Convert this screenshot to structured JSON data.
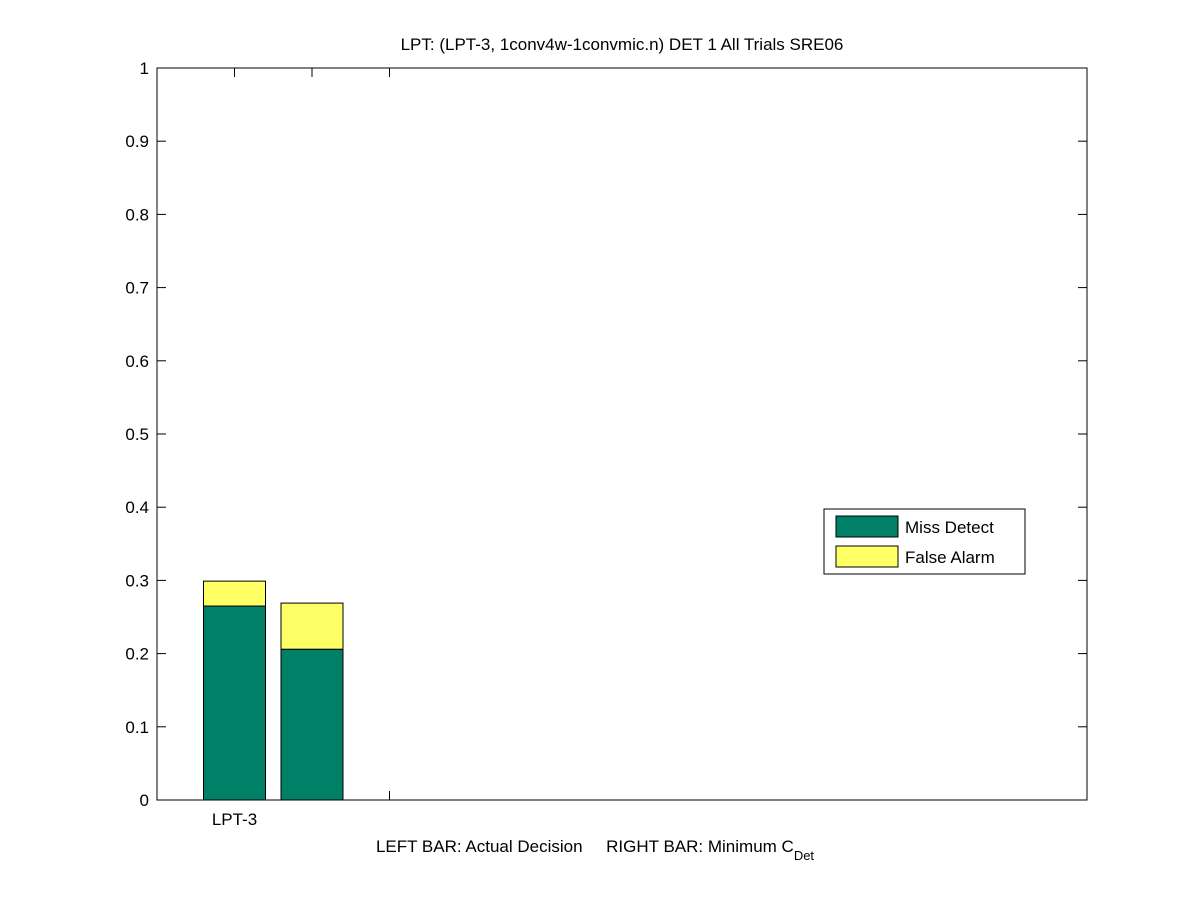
{
  "chart_data": {
    "type": "bar",
    "stacked": true,
    "title": "LPT: (LPT-3, 1conv4w-1convmic.n) DET 1 All Trials SRE06",
    "xlabel": "LEFT BAR: Actual Decision     RIGHT BAR: Minimum C",
    "xlabel_subscript": "Det",
    "ylabel": "",
    "xlim": [
      0,
      12
    ],
    "ylim": [
      0,
      1
    ],
    "yticks": [
      0,
      0.1,
      0.2,
      0.3,
      0.4,
      0.5,
      0.6,
      0.7,
      0.8,
      0.9,
      1
    ],
    "ytick_labels": [
      "0",
      "0.1",
      "0.2",
      "0.3",
      "0.4",
      "0.5",
      "0.6",
      "0.7",
      "0.8",
      "0.9",
      "1"
    ],
    "xticks": [
      1,
      2,
      3
    ],
    "xtick_labels": [
      "LPT-3",
      "",
      ""
    ],
    "bar_x": [
      1,
      2
    ],
    "bar_width": 0.8,
    "series": [
      {
        "name": "Miss Detect",
        "color": "#008066",
        "values": [
          0.265,
          0.206
        ]
      },
      {
        "name": "False Alarm",
        "color": "#ffff66",
        "values": [
          0.034,
          0.063
        ]
      }
    ],
    "grid": false,
    "legend_placement": "right"
  }
}
